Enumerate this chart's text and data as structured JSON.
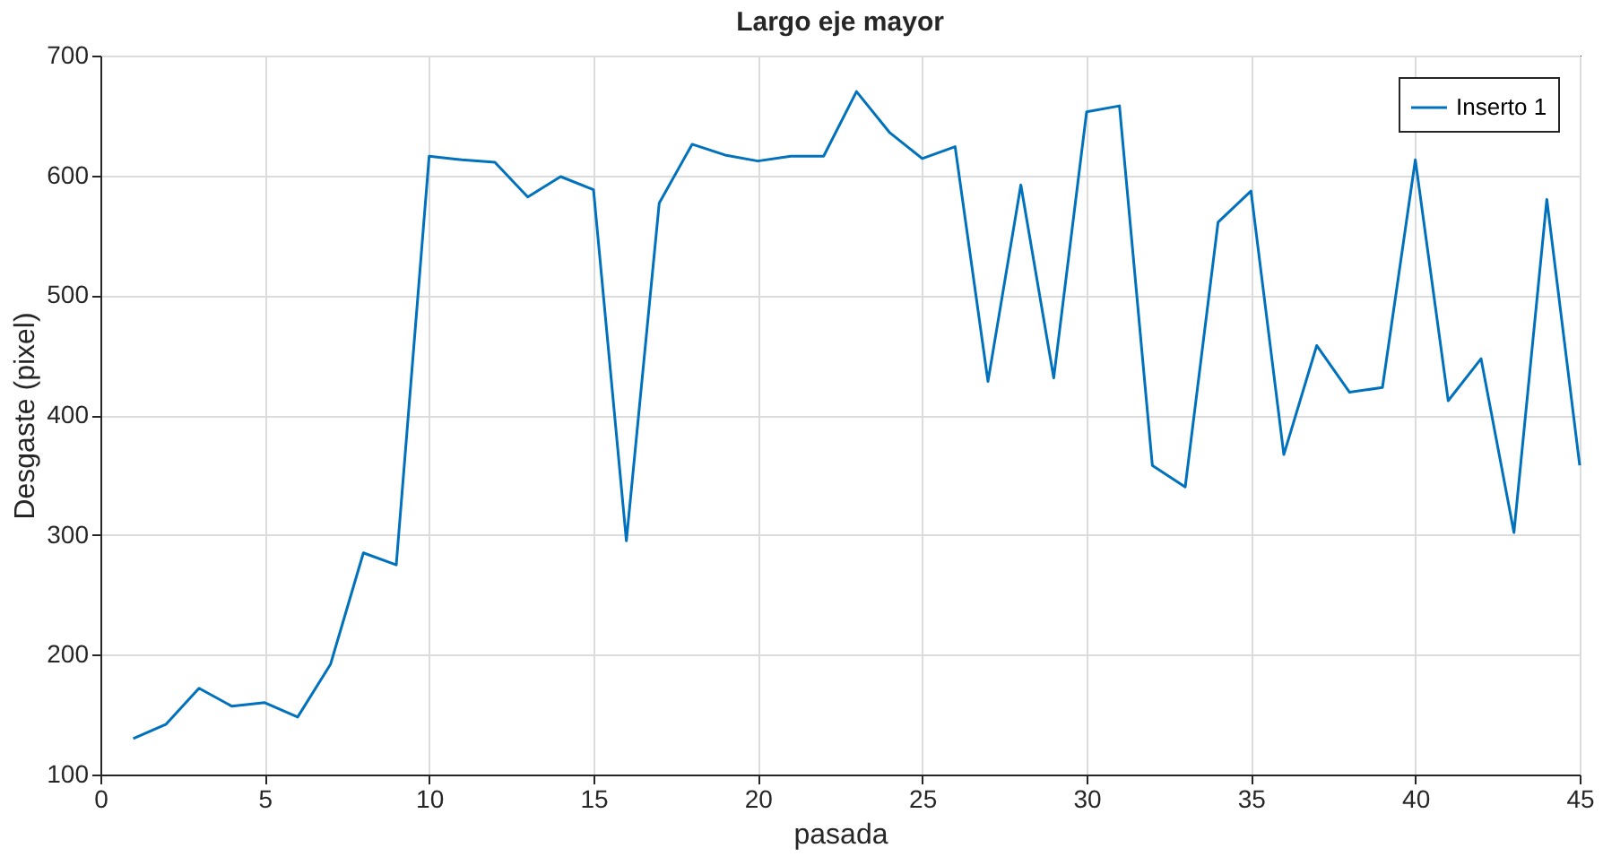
{
  "chart_data": {
    "type": "line",
    "title": "Largo eje mayor",
    "xlabel": "pasada",
    "ylabel": "Desgaste (pixel)",
    "x": [
      1,
      2,
      3,
      4,
      5,
      6,
      7,
      8,
      9,
      10,
      11,
      12,
      13,
      14,
      15,
      16,
      17,
      18,
      19,
      20,
      21,
      22,
      23,
      24,
      25,
      26,
      27,
      28,
      29,
      30,
      31,
      32,
      33,
      34,
      35,
      36,
      37,
      38,
      39,
      40,
      41,
      42,
      43,
      44,
      45
    ],
    "series": [
      {
        "name": "Inserto 1",
        "color": "#0072bd",
        "values": [
          130,
          142,
          172,
          157,
          160,
          148,
          192,
          285,
          275,
          616,
          613,
          611,
          582,
          599,
          588,
          295,
          577,
          626,
          617,
          612,
          616,
          616,
          670,
          636,
          614,
          624,
          428,
          592,
          431,
          653,
          658,
          358,
          340,
          561,
          587,
          367,
          458,
          419,
          423,
          613,
          412,
          447,
          302,
          580,
          358
        ]
      }
    ],
    "xlim": [
      0,
      45
    ],
    "xticks": [
      0,
      5,
      10,
      15,
      20,
      25,
      30,
      35,
      40,
      45
    ],
    "ylim": [
      100,
      700
    ],
    "yticks": [
      100,
      200,
      300,
      400,
      500,
      600,
      700
    ],
    "grid": true,
    "legend": "top right",
    "marker": "none",
    "line_style": "solid"
  }
}
